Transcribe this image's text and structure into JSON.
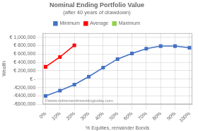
{
  "chart_data": {
    "type": "line",
    "title": "Nominal Ending Portfolio Value",
    "subtitle": "(after 40 years of drawdown)",
    "x_label": "% Equities, remainder Bonds",
    "y_label": "Wealth",
    "annotations": [
      "©www.retirementinvestingtoday.com"
    ],
    "x": [
      0,
      10,
      20,
      30,
      40,
      50,
      60,
      70,
      80,
      90,
      100
    ],
    "series": [
      {
        "name": "Minimum",
        "color": "#4472C4",
        "marker": "square",
        "values": [
          -400000,
          -275000,
          -130000,
          60000,
          275000,
          480000,
          615000,
          730000,
          790000,
          790000,
          750000
        ]
      },
      {
        "name": "Average",
        "color": "#FF0000",
        "marker": "square",
        "values": [
          295000,
          530000,
          810000,
          null,
          null,
          null,
          null,
          null,
          null,
          null,
          null
        ]
      },
      {
        "name": "Maximum",
        "color": "#92D050",
        "marker": "square",
        "values": [
          null,
          null,
          null,
          null,
          null,
          null,
          null,
          null,
          null,
          null,
          null
        ]
      }
    ],
    "xlim": [
      -2,
      102
    ],
    "xticks": [
      {
        "value": 0,
        "label": "0%"
      },
      {
        "value": 10,
        "label": "10%"
      },
      {
        "value": 20,
        "label": "20%"
      },
      {
        "value": 30,
        "label": "30%"
      },
      {
        "value": 40,
        "label": "40%"
      },
      {
        "value": 50,
        "label": "50%"
      },
      {
        "value": 60,
        "label": "60%"
      },
      {
        "value": 70,
        "label": "70%"
      },
      {
        "value": 80,
        "label": "80%"
      },
      {
        "value": 90,
        "label": "90%"
      },
      {
        "value": 100,
        "label": "100%"
      }
    ],
    "ylim": [
      -600000,
      1100000
    ],
    "yticks": [
      {
        "value": -600000,
        "label": "-€600,000"
      },
      {
        "value": -400000,
        "label": "-€400,000"
      },
      {
        "value": -200000,
        "label": "-€200,000"
      },
      {
        "value": 0,
        "label": "€ -"
      },
      {
        "value": 200000,
        "label": "€ 200,000"
      },
      {
        "value": 400000,
        "label": "€ 400,000"
      },
      {
        "value": 600000,
        "label": "€ 600,000"
      },
      {
        "value": 800000,
        "label": "€ 800,000"
      },
      {
        "value": 1000000,
        "label": "€ 1,000,000"
      }
    ],
    "grid": true,
    "legend": "top"
  }
}
